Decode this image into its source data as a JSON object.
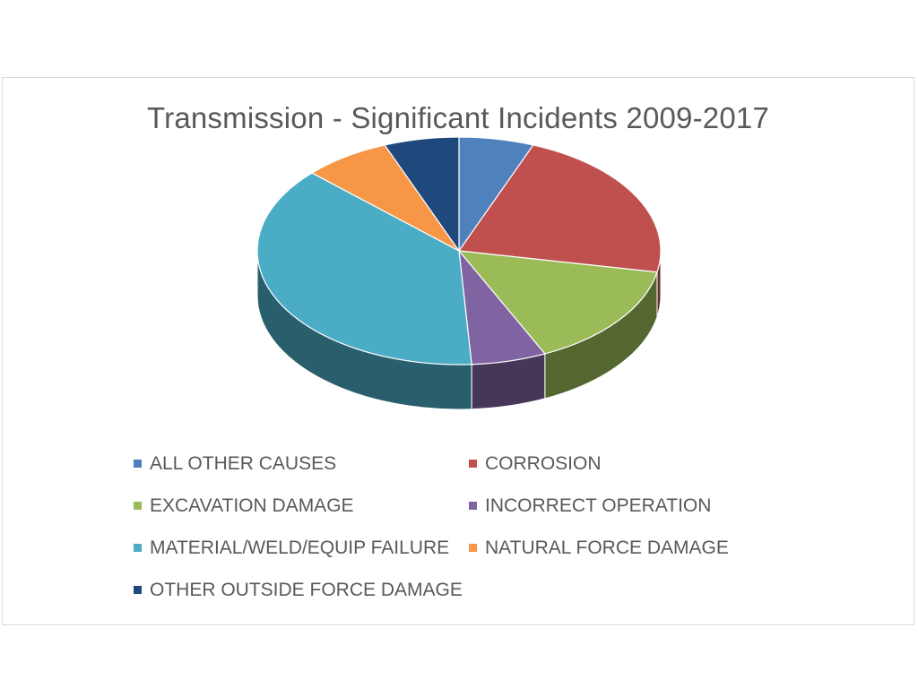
{
  "chart_data": {
    "type": "pie",
    "title": "Transmission - Significant Incidents 2009-2017",
    "legend_position": "bottom",
    "style": "3d",
    "slices": [
      {
        "label": "ALL OTHER CAUSES",
        "value": 6,
        "color": "#4f81bd"
      },
      {
        "label": "CORROSION",
        "value": 22,
        "color": "#c0504d"
      },
      {
        "label": "EXCAVATION DAMAGE",
        "value": 15,
        "color": "#9bbb59"
      },
      {
        "label": "INCORRECT OPERATION",
        "value": 6,
        "color": "#8064a2"
      },
      {
        "label": "MATERIAL/WELD/EQUIP FAILURE",
        "value": 38,
        "color": "#4bacc6"
      },
      {
        "label": "NATURAL FORCE DAMAGE",
        "value": 7,
        "color": "#f79646"
      },
      {
        "label": "OTHER OUTSIDE FORCE DAMAGE",
        "value": 6,
        "color": "#1f497d"
      }
    ]
  }
}
